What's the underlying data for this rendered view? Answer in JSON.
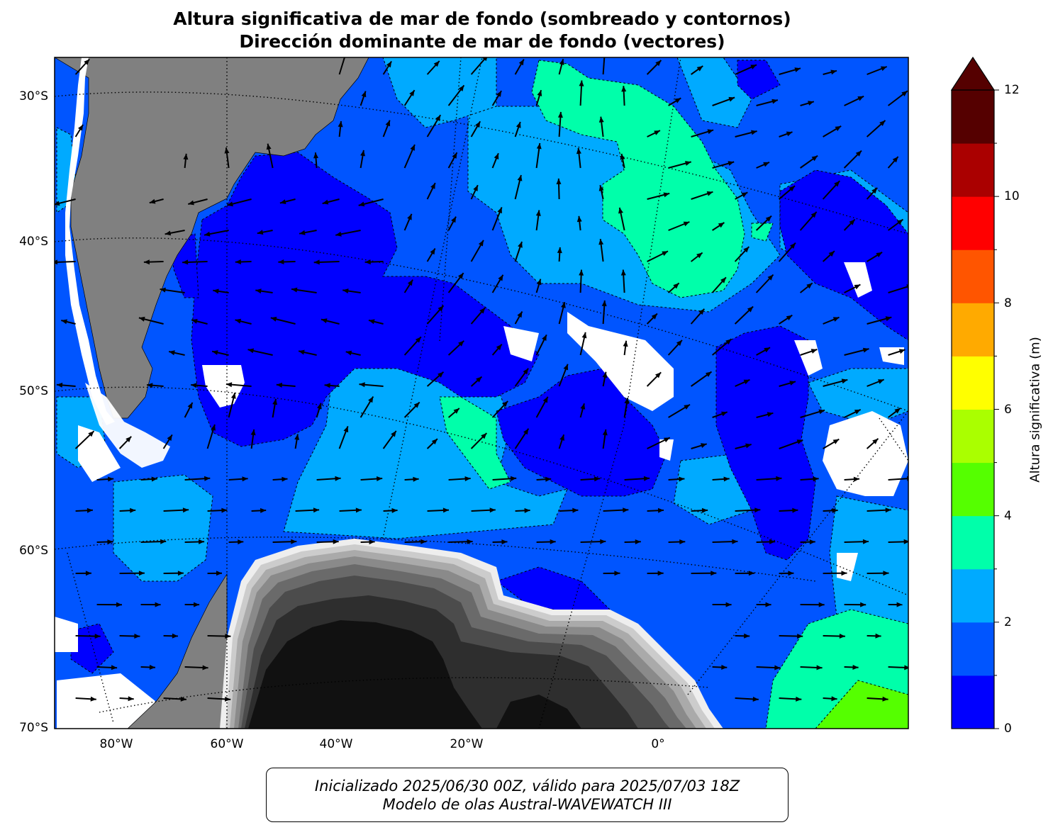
{
  "title": {
    "line1": "Altura significativa de mar de fondo (sombreado y contornos)",
    "line2": "Dirección dominante de mar de fondo (vectores)"
  },
  "map": {
    "latitude_labels": [
      "30°S",
      "40°S",
      "50°S",
      "60°S",
      "70°S"
    ],
    "longitude_labels": [
      "80°W",
      "60°W",
      "40°W",
      "20°W",
      "0°"
    ],
    "projection_gridlines": "dotted",
    "land_color": "#808080",
    "antarctic_ice_shades": [
      "#111111",
      "#2e2e2e",
      "#4c4c4c",
      "#6a6a6a",
      "#8a8a8a",
      "#aaaaaa",
      "#cccccc",
      "#eeeeee"
    ]
  },
  "colorbar": {
    "label": "Altura significativa (m)",
    "tick_labels": [
      "0",
      "2",
      "4",
      "6",
      "8",
      "10",
      "12"
    ],
    "levels_m": [
      0,
      1,
      2,
      3,
      4,
      5,
      6,
      7,
      8,
      9,
      10,
      11,
      12
    ],
    "colors": [
      "#0000ff",
      "#0055ff",
      "#00aaff",
      "#00ffaa",
      "#55ff00",
      "#aaff00",
      "#ffff00",
      "#ffaa00",
      "#ff5500",
      "#ff0000",
      "#aa0000",
      "#550000"
    ],
    "extend": "max"
  },
  "footer": {
    "line1": "Inicializado 2025/06/30 00Z, válido para 2025/07/03 18Z",
    "line2": "Modelo de olas Austral-WAVEWATCH III"
  }
}
